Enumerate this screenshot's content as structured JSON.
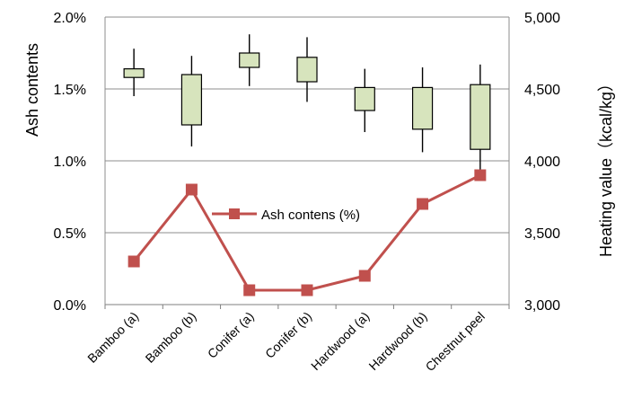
{
  "chart_data": {
    "type": "line+candlestick",
    "categories": [
      "Bamboo (a)",
      "Bamboo (b)",
      "Conifer (a)",
      "Conifer (b)",
      "Hardwood (a)",
      "Hardwood (b)",
      "Chestnut peel"
    ],
    "ylabel_left": "Ash contents",
    "ylabel_right": "Heating value（kcal/kg）",
    "y_left": {
      "ylim": [
        0,
        0.02
      ],
      "ticks": [
        "0.0%",
        "0.5%",
        "1.0%",
        "1.5%",
        "2.0%"
      ]
    },
    "y_right": {
      "ylim": [
        3000,
        5000
      ],
      "ticks": [
        "3,000",
        "3,500",
        "4,000",
        "4,500",
        "5,000"
      ]
    },
    "grid": true,
    "line_series": {
      "name": "Ash contens (%)",
      "axis": "left",
      "color": "#c0504d",
      "values": [
        0.003,
        0.008,
        0.001,
        0.001,
        0.002,
        0.007,
        0.009
      ]
    },
    "candlestick_series": {
      "axis": "right",
      "fill": "#d7e4bd",
      "stroke": "#000000",
      "high": [
        4780,
        4730,
        4880,
        4860,
        4640,
        4650,
        4670
      ],
      "box_top": [
        4640,
        4600,
        4750,
        4720,
        4510,
        4510,
        4530
      ],
      "box_bottom": [
        4580,
        4250,
        4650,
        4550,
        4350,
        4220,
        4080
      ],
      "low": [
        4450,
        4100,
        4520,
        4410,
        4200,
        4060,
        3920
      ]
    },
    "legend_position": "inside-center-left"
  }
}
